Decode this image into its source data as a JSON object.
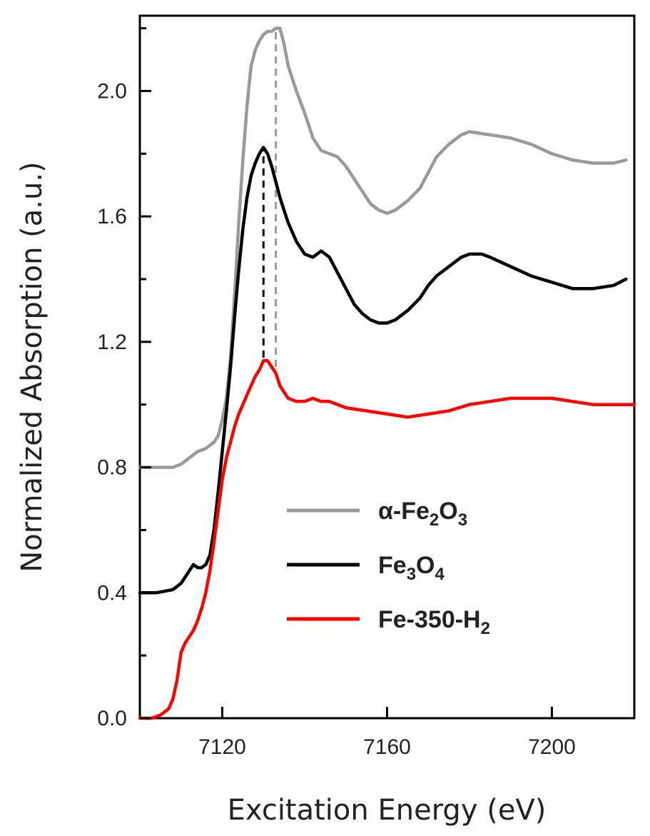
{
  "chart_data": {
    "type": "line",
    "xlabel": "Excitation Energy (eV)",
    "ylabel": "Normalized Absorption (a.u.)",
    "xlim": [
      7100,
      7220
    ],
    "ylim": [
      0.0,
      2.24
    ],
    "x_ticks": [
      7120,
      7160,
      7200
    ],
    "y_ticks": [
      0.0,
      0.4,
      0.8,
      1.2,
      1.6,
      2.0
    ],
    "x_tick_labels": [
      "7120",
      "7160",
      "7200"
    ],
    "y_tick_labels": [
      "0.0",
      "0.4",
      "0.8",
      "1.2",
      "1.6",
      "2.0"
    ],
    "grid": false,
    "legend_position": "center-right",
    "reference_lines": [
      {
        "x": 7130.0,
        "y_from": 1.15,
        "y_to": 1.82,
        "color": "#000000",
        "style": "dashed"
      },
      {
        "x": 7133.0,
        "y_from": 1.12,
        "y_to": 2.2,
        "color": "#999999",
        "style": "dashed"
      }
    ],
    "series": [
      {
        "name_main": "α-Fe",
        "name_sub1": "2",
        "name_mid": "O",
        "name_sub2": "3",
        "name_end": "",
        "color": "#999999",
        "x": [
          7100,
          7104,
          7108,
          7110,
          7112,
          7114,
          7116,
          7118,
          7119,
          7120,
          7121,
          7122,
          7123,
          7124,
          7125,
          7126,
          7127,
          7128,
          7129,
          7130,
          7131,
          7132,
          7133,
          7134,
          7135,
          7136,
          7138,
          7140,
          7142,
          7144,
          7146,
          7148,
          7150,
          7152,
          7154,
          7156,
          7158,
          7160,
          7162,
          7165,
          7168,
          7170,
          7172,
          7175,
          7178,
          7180,
          7185,
          7190,
          7195,
          7200,
          7205,
          7210,
          7215,
          7218
        ],
        "y": [
          0.8,
          0.8,
          0.8,
          0.81,
          0.83,
          0.85,
          0.86,
          0.88,
          0.9,
          0.95,
          1.02,
          1.15,
          1.35,
          1.58,
          1.78,
          1.95,
          2.08,
          2.13,
          2.16,
          2.18,
          2.19,
          2.19,
          2.2,
          2.2,
          2.15,
          2.08,
          2.0,
          1.93,
          1.85,
          1.81,
          1.8,
          1.79,
          1.76,
          1.72,
          1.68,
          1.64,
          1.62,
          1.61,
          1.62,
          1.65,
          1.69,
          1.74,
          1.79,
          1.83,
          1.86,
          1.87,
          1.86,
          1.85,
          1.83,
          1.8,
          1.78,
          1.77,
          1.77,
          1.78
        ]
      },
      {
        "name_main": "Fe",
        "name_sub1": "3",
        "name_mid": "O",
        "name_sub2": "4",
        "name_end": "",
        "color": "#000000",
        "x": [
          7100,
          7104,
          7108,
          7110,
          7112,
          7113,
          7114,
          7115,
          7116,
          7117,
          7118,
          7119,
          7120,
          7121,
          7122,
          7123,
          7124,
          7125,
          7126,
          7127,
          7128,
          7129,
          7130,
          7131,
          7132,
          7133,
          7134,
          7135,
          7136,
          7138,
          7140,
          7142,
          7144,
          7146,
          7148,
          7150,
          7152,
          7154,
          7156,
          7158,
          7160,
          7162,
          7165,
          7168,
          7170,
          7172,
          7175,
          7178,
          7180,
          7183,
          7185,
          7190,
          7195,
          7200,
          7205,
          7210,
          7215,
          7218
        ],
        "y": [
          0.4,
          0.4,
          0.41,
          0.43,
          0.47,
          0.49,
          0.48,
          0.48,
          0.49,
          0.52,
          0.6,
          0.72,
          0.85,
          0.98,
          1.12,
          1.28,
          1.43,
          1.56,
          1.66,
          1.73,
          1.77,
          1.8,
          1.82,
          1.8,
          1.76,
          1.71,
          1.66,
          1.62,
          1.58,
          1.52,
          1.48,
          1.47,
          1.49,
          1.47,
          1.42,
          1.37,
          1.32,
          1.29,
          1.27,
          1.26,
          1.26,
          1.27,
          1.3,
          1.34,
          1.38,
          1.41,
          1.44,
          1.47,
          1.48,
          1.48,
          1.47,
          1.44,
          1.41,
          1.39,
          1.37,
          1.37,
          1.38,
          1.4
        ]
      },
      {
        "name_main": "Fe-350-H",
        "name_sub1": "2",
        "name_mid": "",
        "name_sub2": "",
        "name_end": "",
        "color": "#ff0000",
        "x": [
          7100,
          7103,
          7105,
          7107,
          7108,
          7109,
          7110,
          7111,
          7112,
          7113,
          7114,
          7115,
          7116,
          7117,
          7118,
          7119,
          7120,
          7121,
          7122,
          7123,
          7124,
          7125,
          7126,
          7127,
          7128,
          7129,
          7130,
          7131,
          7132,
          7133,
          7134,
          7135,
          7136,
          7138,
          7140,
          7142,
          7144,
          7146,
          7148,
          7150,
          7155,
          7160,
          7165,
          7170,
          7175,
          7180,
          7185,
          7190,
          7195,
          7200,
          7205,
          7210,
          7215,
          7220
        ],
        "y": [
          0.0,
          0.0,
          0.01,
          0.03,
          0.06,
          0.12,
          0.21,
          0.24,
          0.26,
          0.28,
          0.31,
          0.35,
          0.4,
          0.47,
          0.56,
          0.66,
          0.76,
          0.83,
          0.88,
          0.93,
          0.97,
          1.0,
          1.03,
          1.06,
          1.09,
          1.11,
          1.14,
          1.14,
          1.12,
          1.1,
          1.06,
          1.04,
          1.02,
          1.01,
          1.01,
          1.02,
          1.01,
          1.01,
          1.0,
          0.99,
          0.98,
          0.97,
          0.96,
          0.97,
          0.98,
          1.0,
          1.01,
          1.02,
          1.02,
          1.02,
          1.01,
          1.0,
          1.0,
          1.0
        ]
      }
    ]
  }
}
